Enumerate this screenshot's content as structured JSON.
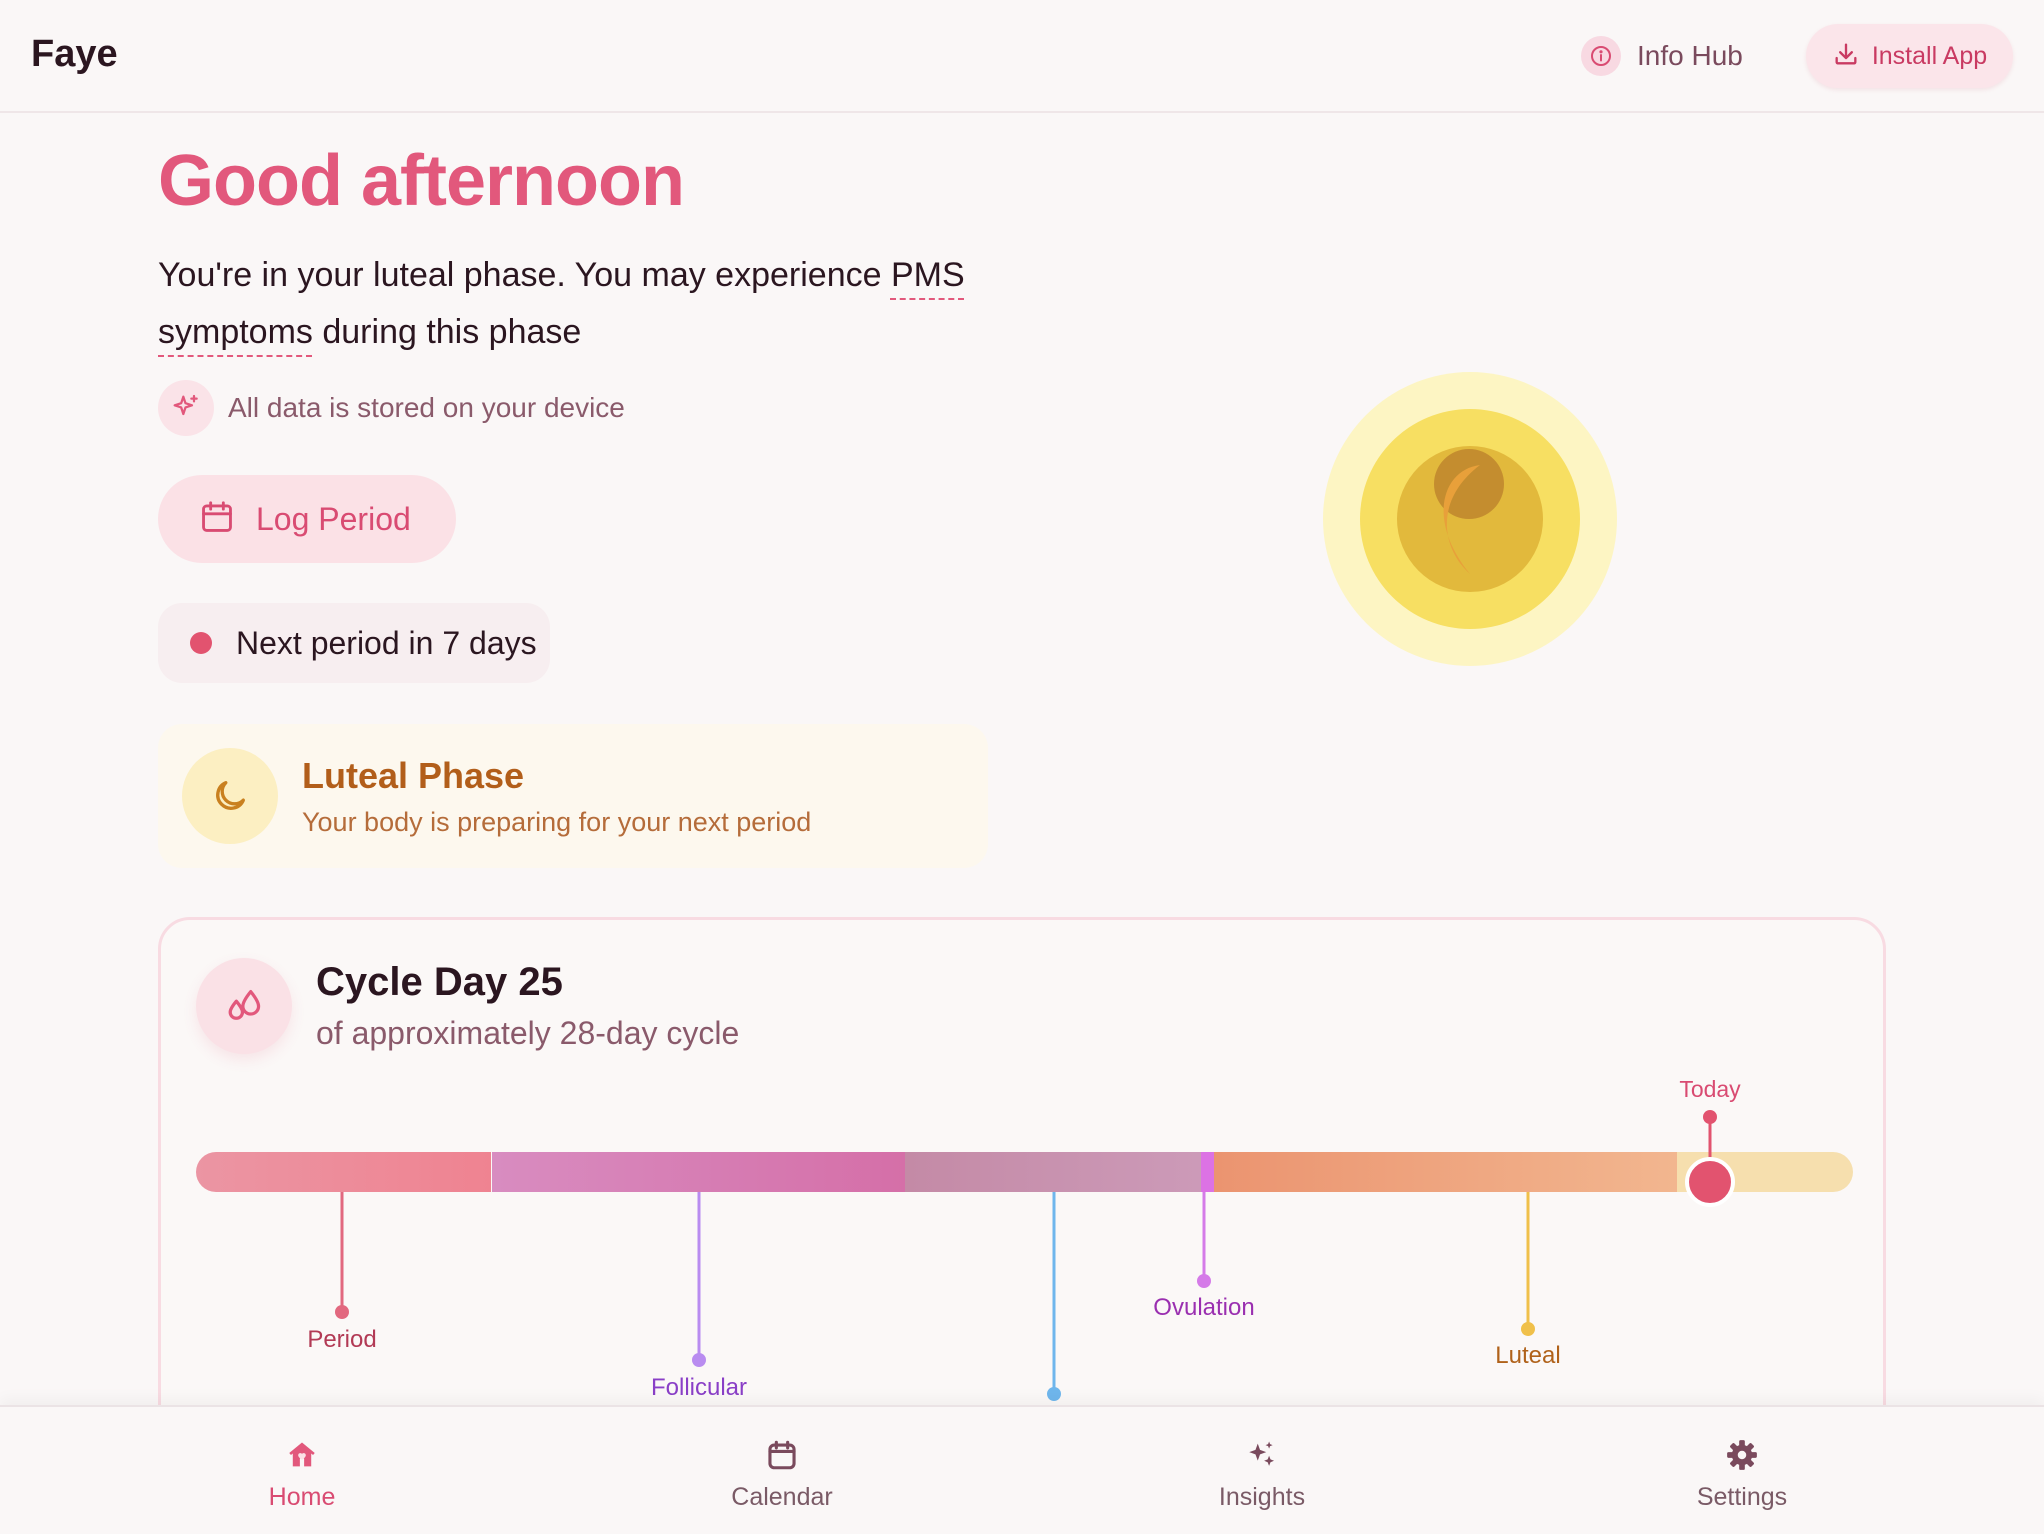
{
  "header": {
    "brand": "Faye",
    "info_hub_label": "Info Hub",
    "install_label": "Install App"
  },
  "greeting": "Good afternoon",
  "phase_message": {
    "prefix": "You're in your luteal phase. You may experience ",
    "link": "PMS symptoms",
    "suffix": " during this phase"
  },
  "storage_note": "All data is stored on your device",
  "log_period_label": "Log Period",
  "next_period": "Next period in 7 days",
  "phase_card": {
    "title": "Luteal Phase",
    "subtitle": "Your body is preparing for your next period"
  },
  "cycle": {
    "title": "Cycle Day 25",
    "subtitle": "of approximately 28-day cycle",
    "day": 25,
    "length": 28,
    "today_label": "Today",
    "markers": [
      {
        "label": "Period",
        "color": "#e2687f",
        "label_color": "#b23a55"
      },
      {
        "label": "Follicular",
        "color": "#b98cf0",
        "label_color": "#8a3fc7"
      },
      {
        "label": "",
        "color": "#6fb6ec",
        "label_color": "#3a7fc0"
      },
      {
        "label": "Ovulation",
        "color": "#d57be8",
        "label_color": "#9a2fb0"
      },
      {
        "label": "Luteal",
        "color": "#f0c04a",
        "label_color": "#b0621a"
      }
    ]
  },
  "colors": {
    "accent": "#e2587c",
    "today_marker": "#e2536f"
  },
  "nav": [
    {
      "label": "Home",
      "icon": "home-icon",
      "active": true
    },
    {
      "label": "Calendar",
      "icon": "calendar-icon",
      "active": false
    },
    {
      "label": "Insights",
      "icon": "sparkles-icon",
      "active": false
    },
    {
      "label": "Settings",
      "icon": "gear-icon",
      "active": false
    }
  ]
}
